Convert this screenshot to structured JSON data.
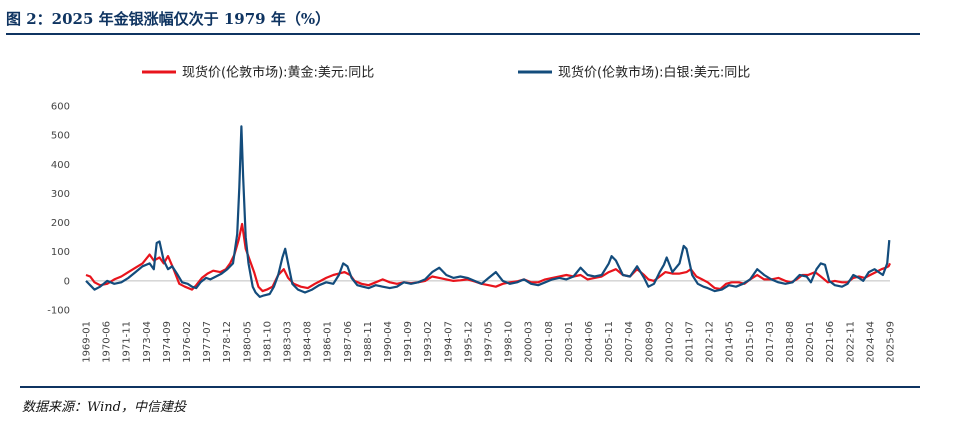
{
  "header": {
    "title": "图 2：2025 年金银涨幅仅次于 1979 年（%）"
  },
  "footer": {
    "source": "数据来源：Wind，中信建投"
  },
  "chart_data": {
    "type": "line",
    "title": "2025 年金银涨幅仅次于 1979 年（%）",
    "xlabel": "",
    "ylabel": "",
    "ylim": [
      -100,
      600
    ],
    "yticks": [
      -100,
      0,
      100,
      200,
      300,
      400,
      500,
      600
    ],
    "xlim": [
      1969.0,
      2025.9
    ],
    "x_tick_labels": [
      "1969-01",
      "1970-06",
      "1971-11",
      "1973-04",
      "1974-09",
      "1976-02",
      "1977-07",
      "1978-12",
      "1980-05",
      "1981-10",
      "1983-03",
      "1984-08",
      "1986-01",
      "1987-06",
      "1988-11",
      "1990-04",
      "1991-09",
      "1993-02",
      "1994-07",
      "1995-12",
      "1997-05",
      "1998-10",
      "2000-03",
      "2001-08",
      "2003-01",
      "2004-06",
      "2005-11",
      "2007-04",
      "2008-09",
      "2010-02",
      "2011-07",
      "2012-12",
      "2014-05",
      "2015-10",
      "2017-03",
      "2018-08",
      "2020-01",
      "2021-06",
      "2022-11",
      "2024-04",
      "2025-09"
    ],
    "legend_position": "top",
    "series": [
      {
        "name": "现货价(伦敦市场):黄金:美元:同比",
        "color": "#e8141c",
        "points": [
          [
            1969.0,
            20
          ],
          [
            1969.3,
            15
          ],
          [
            1969.6,
            -5
          ],
          [
            1970.0,
            -15
          ],
          [
            1970.5,
            -10
          ],
          [
            1971.0,
            5
          ],
          [
            1971.5,
            15
          ],
          [
            1972.0,
            30
          ],
          [
            1972.5,
            45
          ],
          [
            1973.0,
            60
          ],
          [
            1973.5,
            90
          ],
          [
            1973.8,
            70
          ],
          [
            1974.2,
            80
          ],
          [
            1974.5,
            60
          ],
          [
            1974.8,
            85
          ],
          [
            1975.2,
            40
          ],
          [
            1975.6,
            -10
          ],
          [
            1976.0,
            -20
          ],
          [
            1976.5,
            -30
          ],
          [
            1976.8,
            -15
          ],
          [
            1977.2,
            10
          ],
          [
            1977.6,
            25
          ],
          [
            1978.0,
            35
          ],
          [
            1978.5,
            30
          ],
          [
            1978.9,
            40
          ],
          [
            1979.2,
            60
          ],
          [
            1979.5,
            90
          ],
          [
            1979.8,
            140
          ],
          [
            1980.05,
            195
          ],
          [
            1980.3,
            110
          ],
          [
            1980.6,
            70
          ],
          [
            1980.9,
            30
          ],
          [
            1981.2,
            -20
          ],
          [
            1981.5,
            -35
          ],
          [
            1981.8,
            -30
          ],
          [
            1982.2,
            -20
          ],
          [
            1982.6,
            20
          ],
          [
            1983.0,
            40
          ],
          [
            1983.3,
            10
          ],
          [
            1983.7,
            -10
          ],
          [
            1984.2,
            -20
          ],
          [
            1984.7,
            -25
          ],
          [
            1985.2,
            -10
          ],
          [
            1985.6,
            0
          ],
          [
            1986.0,
            10
          ],
          [
            1986.5,
            20
          ],
          [
            1986.9,
            25
          ],
          [
            1987.3,
            30
          ],
          [
            1987.7,
            20
          ],
          [
            1988.0,
            0
          ],
          [
            1988.5,
            -10
          ],
          [
            1989.0,
            -15
          ],
          [
            1989.5,
            -5
          ],
          [
            1990.0,
            5
          ],
          [
            1990.5,
            -5
          ],
          [
            1991.0,
            -10
          ],
          [
            1991.5,
            -5
          ],
          [
            1992.0,
            -8
          ],
          [
            1992.5,
            -5
          ],
          [
            1993.0,
            0
          ],
          [
            1993.5,
            15
          ],
          [
            1994.0,
            10
          ],
          [
            1994.5,
            5
          ],
          [
            1995.0,
            0
          ],
          [
            1995.5,
            2
          ],
          [
            1996.0,
            5
          ],
          [
            1996.5,
            -2
          ],
          [
            1997.0,
            -10
          ],
          [
            1997.5,
            -15
          ],
          [
            1998.0,
            -20
          ],
          [
            1998.5,
            -10
          ],
          [
            1999.0,
            -5
          ],
          [
            1999.5,
            -2
          ],
          [
            2000.0,
            5
          ],
          [
            2000.5,
            -5
          ],
          [
            2001.0,
            -5
          ],
          [
            2001.5,
            5
          ],
          [
            2002.0,
            10
          ],
          [
            2002.5,
            15
          ],
          [
            2003.0,
            20
          ],
          [
            2003.5,
            15
          ],
          [
            2004.0,
            20
          ],
          [
            2004.5,
            5
          ],
          [
            2005.0,
            10
          ],
          [
            2005.5,
            15
          ],
          [
            2006.0,
            30
          ],
          [
            2006.5,
            40
          ],
          [
            2007.0,
            20
          ],
          [
            2007.5,
            15
          ],
          [
            2008.0,
            40
          ],
          [
            2008.5,
            20
          ],
          [
            2008.8,
            5
          ],
          [
            2009.2,
            0
          ],
          [
            2009.6,
            15
          ],
          [
            2010.0,
            30
          ],
          [
            2010.5,
            25
          ],
          [
            2011.0,
            25
          ],
          [
            2011.5,
            30
          ],
          [
            2011.8,
            40
          ],
          [
            2012.2,
            15
          ],
          [
            2012.6,
            5
          ],
          [
            2013.0,
            -5
          ],
          [
            2013.5,
            -25
          ],
          [
            2013.9,
            -28
          ],
          [
            2014.3,
            -10
          ],
          [
            2014.7,
            -5
          ],
          [
            2015.2,
            -5
          ],
          [
            2015.6,
            -10
          ],
          [
            2016.0,
            5
          ],
          [
            2016.5,
            20
          ],
          [
            2017.0,
            5
          ],
          [
            2017.5,
            5
          ],
          [
            2018.0,
            10
          ],
          [
            2018.5,
            0
          ],
          [
            2018.9,
            -5
          ],
          [
            2019.3,
            5
          ],
          [
            2019.7,
            20
          ],
          [
            2020.1,
            20
          ],
          [
            2020.6,
            30
          ],
          [
            2021.0,
            15
          ],
          [
            2021.5,
            -5
          ],
          [
            2022.0,
            0
          ],
          [
            2022.5,
            -5
          ],
          [
            2022.9,
            -5
          ],
          [
            2023.3,
            10
          ],
          [
            2023.7,
            15
          ],
          [
            2024.1,
            10
          ],
          [
            2024.5,
            20
          ],
          [
            2024.9,
            30
          ],
          [
            2025.3,
            40
          ],
          [
            2025.6,
            45
          ],
          [
            2025.8,
            50
          ],
          [
            2025.9,
            60
          ]
        ]
      },
      {
        "name": "现货价(伦敦市场):白银:美元:同比",
        "color": "#134c7c",
        "points": [
          [
            1969.0,
            0
          ],
          [
            1969.3,
            -15
          ],
          [
            1969.6,
            -30
          ],
          [
            1970.0,
            -20
          ],
          [
            1970.5,
            0
          ],
          [
            1971.0,
            -10
          ],
          [
            1971.5,
            -5
          ],
          [
            1972.0,
            10
          ],
          [
            1972.5,
            30
          ],
          [
            1973.0,
            50
          ],
          [
            1973.5,
            60
          ],
          [
            1973.8,
            40
          ],
          [
            1974.0,
            130
          ],
          [
            1974.2,
            135
          ],
          [
            1974.5,
            70
          ],
          [
            1974.8,
            40
          ],
          [
            1975.1,
            50
          ],
          [
            1975.5,
            20
          ],
          [
            1975.8,
            -5
          ],
          [
            1976.2,
            -10
          ],
          [
            1976.5,
            -20
          ],
          [
            1976.8,
            -25
          ],
          [
            1977.1,
            -5
          ],
          [
            1977.5,
            10
          ],
          [
            1977.8,
            5
          ],
          [
            1978.2,
            15
          ],
          [
            1978.6,
            25
          ],
          [
            1979.0,
            40
          ],
          [
            1979.4,
            60
          ],
          [
            1979.7,
            160
          ],
          [
            1979.85,
            320
          ],
          [
            1980.0,
            530
          ],
          [
            1980.12,
            360
          ],
          [
            1980.3,
            150
          ],
          [
            1980.5,
            60
          ],
          [
            1980.8,
            -20
          ],
          [
            1981.0,
            -40
          ],
          [
            1981.3,
            -55
          ],
          [
            1981.6,
            -50
          ],
          [
            1982.0,
            -45
          ],
          [
            1982.3,
            -20
          ],
          [
            1982.6,
            20
          ],
          [
            1982.9,
            80
          ],
          [
            1983.1,
            110
          ],
          [
            1983.3,
            60
          ],
          [
            1983.6,
            -10
          ],
          [
            1984.0,
            -30
          ],
          [
            1984.5,
            -40
          ],
          [
            1985.0,
            -30
          ],
          [
            1985.5,
            -15
          ],
          [
            1986.0,
            -5
          ],
          [
            1986.5,
            -10
          ],
          [
            1986.9,
            20
          ],
          [
            1987.2,
            60
          ],
          [
            1987.5,
            50
          ],
          [
            1987.8,
            10
          ],
          [
            1988.2,
            -15
          ],
          [
            1988.6,
            -20
          ],
          [
            1989.0,
            -25
          ],
          [
            1989.5,
            -15
          ],
          [
            1990.0,
            -20
          ],
          [
            1990.5,
            -25
          ],
          [
            1991.0,
            -20
          ],
          [
            1991.5,
            -5
          ],
          [
            1992.0,
            -10
          ],
          [
            1992.5,
            -5
          ],
          [
            1993.0,
            5
          ],
          [
            1993.5,
            30
          ],
          [
            1994.0,
            45
          ],
          [
            1994.5,
            20
          ],
          [
            1995.0,
            10
          ],
          [
            1995.5,
            15
          ],
          [
            1996.0,
            10
          ],
          [
            1996.5,
            0
          ],
          [
            1997.0,
            -10
          ],
          [
            1997.5,
            10
          ],
          [
            1998.0,
            30
          ],
          [
            1998.5,
            0
          ],
          [
            1999.0,
            -10
          ],
          [
            1999.5,
            -5
          ],
          [
            2000.0,
            5
          ],
          [
            2000.5,
            -10
          ],
          [
            2001.0,
            -15
          ],
          [
            2001.5,
            -5
          ],
          [
            2002.0,
            5
          ],
          [
            2002.5,
            10
          ],
          [
            2003.0,
            5
          ],
          [
            2003.5,
            15
          ],
          [
            2004.0,
            45
          ],
          [
            2004.5,
            20
          ],
          [
            2005.0,
            15
          ],
          [
            2005.5,
            20
          ],
          [
            2006.0,
            60
          ],
          [
            2006.2,
            85
          ],
          [
            2006.5,
            70
          ],
          [
            2007.0,
            20
          ],
          [
            2007.5,
            15
          ],
          [
            2008.0,
            50
          ],
          [
            2008.5,
            10
          ],
          [
            2008.8,
            -20
          ],
          [
            2009.2,
            -10
          ],
          [
            2009.6,
            30
          ],
          [
            2009.9,
            55
          ],
          [
            2010.1,
            80
          ],
          [
            2010.5,
            30
          ],
          [
            2011.0,
            60
          ],
          [
            2011.3,
            120
          ],
          [
            2011.5,
            110
          ],
          [
            2011.9,
            20
          ],
          [
            2012.3,
            -10
          ],
          [
            2012.7,
            -20
          ],
          [
            2013.0,
            -25
          ],
          [
            2013.5,
            -35
          ],
          [
            2014.0,
            -30
          ],
          [
            2014.5,
            -15
          ],
          [
            2015.0,
            -20
          ],
          [
            2015.5,
            -10
          ],
          [
            2016.0,
            5
          ],
          [
            2016.5,
            40
          ],
          [
            2017.0,
            20
          ],
          [
            2017.5,
            5
          ],
          [
            2018.0,
            -5
          ],
          [
            2018.5,
            -10
          ],
          [
            2019.0,
            -5
          ],
          [
            2019.5,
            20
          ],
          [
            2020.0,
            15
          ],
          [
            2020.3,
            -5
          ],
          [
            2020.7,
            40
          ],
          [
            2021.0,
            60
          ],
          [
            2021.3,
            55
          ],
          [
            2021.6,
            0
          ],
          [
            2022.0,
            -15
          ],
          [
            2022.5,
            -20
          ],
          [
            2022.9,
            -10
          ],
          [
            2023.3,
            20
          ],
          [
            2023.7,
            10
          ],
          [
            2024.0,
            0
          ],
          [
            2024.4,
            30
          ],
          [
            2024.8,
            40
          ],
          [
            2025.1,
            30
          ],
          [
            2025.4,
            20
          ],
          [
            2025.7,
            60
          ],
          [
            2025.85,
            140
          ]
        ]
      }
    ]
  }
}
